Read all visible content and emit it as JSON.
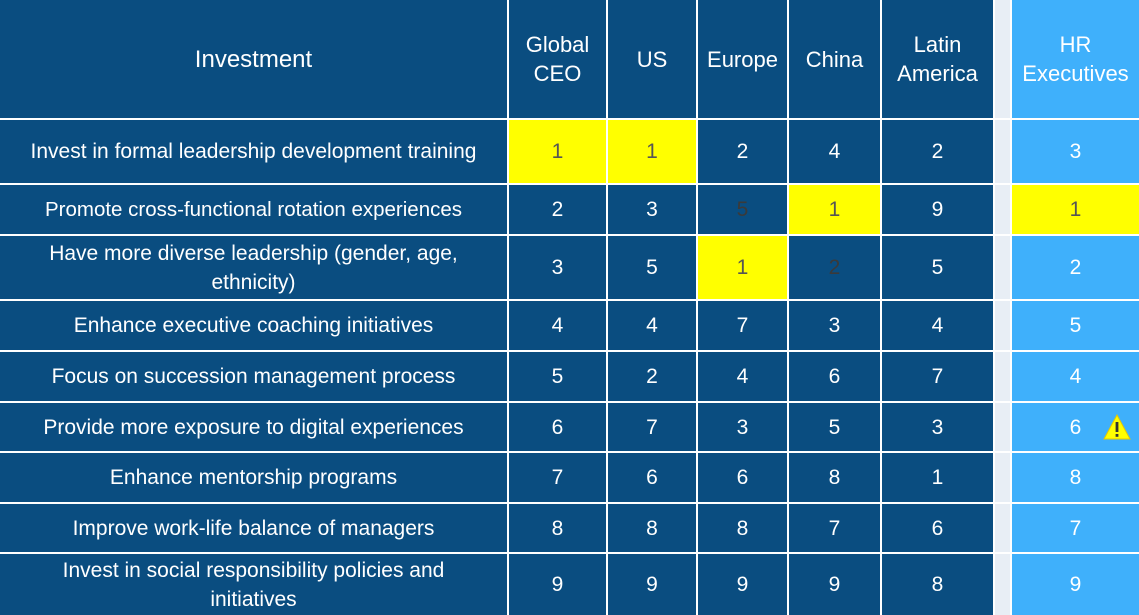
{
  "header": {
    "investment": "Investment",
    "columns": [
      "Global CEO",
      "US",
      "Europe",
      "China",
      "Latin America",
      "HR Executives"
    ]
  },
  "rows": [
    {
      "label": "Invest in formal leadership development training",
      "values": [
        "1",
        "1",
        "2",
        "4",
        "2",
        "3"
      ]
    },
    {
      "label": "Promote cross-functional rotation experiences",
      "values": [
        "2",
        "3",
        "5",
        "1",
        "9",
        "1"
      ]
    },
    {
      "label": "Have more diverse leadership (gender, age, ethnicity)",
      "values": [
        "3",
        "5",
        "1",
        "2",
        "5",
        "2"
      ]
    },
    {
      "label": "Enhance executive coaching initiatives",
      "values": [
        "4",
        "4",
        "7",
        "3",
        "4",
        "5"
      ]
    },
    {
      "label": "Focus on succession management process",
      "values": [
        "5",
        "2",
        "4",
        "6",
        "7",
        "4"
      ]
    },
    {
      "label": "Provide more exposure to digital experiences",
      "values": [
        "6",
        "7",
        "3",
        "5",
        "3",
        "6"
      ]
    },
    {
      "label": "Enhance mentorship programs",
      "values": [
        "7",
        "6",
        "6",
        "8",
        "1",
        "8"
      ]
    },
    {
      "label": "Improve work-life balance of managers",
      "values": [
        "8",
        "8",
        "8",
        "7",
        "6",
        "7"
      ]
    },
    {
      "label": "Invest in social responsibility policies and initiatives",
      "values": [
        "9",
        "9",
        "9",
        "9",
        "8",
        "9"
      ]
    }
  ],
  "colors": {
    "cell": "#0a4d80",
    "hr_column": "#3fb0fb",
    "highlight": "#ffff00",
    "gap": "#e8eef5"
  },
  "icons": {
    "warning": "warning-icon"
  }
}
